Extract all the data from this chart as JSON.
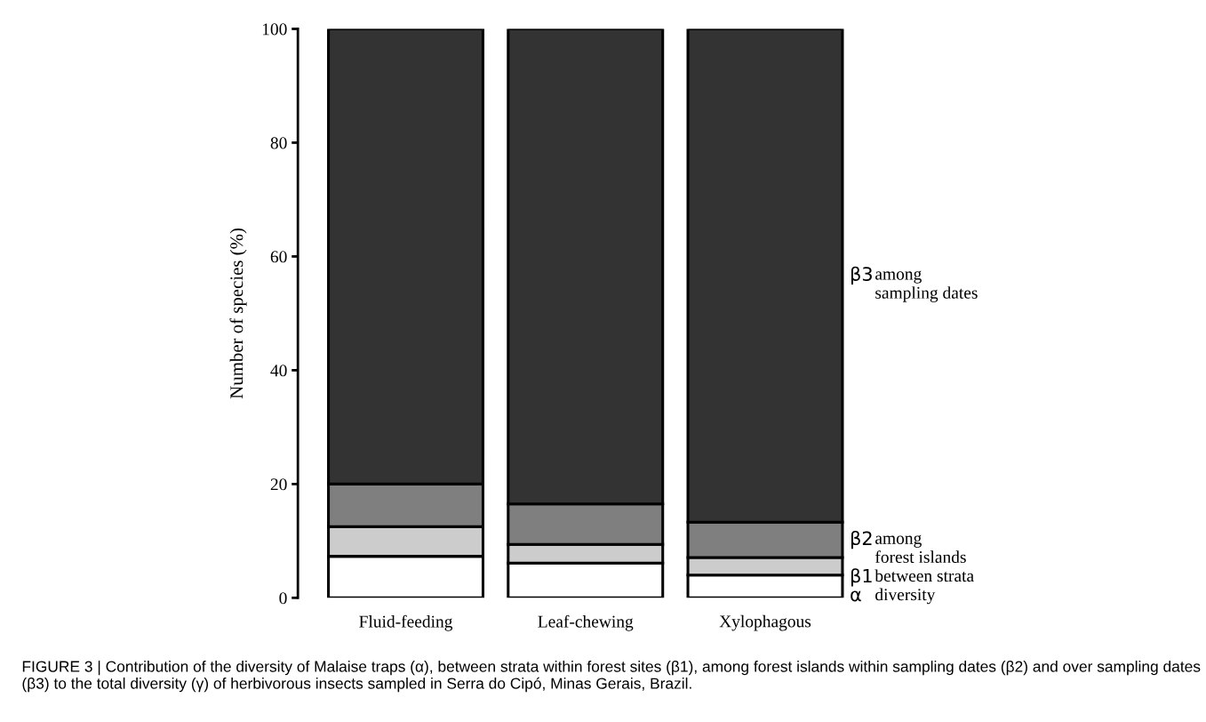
{
  "chart_data": {
    "type": "bar",
    "stacked": true,
    "ylabel": "Number of species (%)",
    "categories": [
      "Fluid-feeding",
      "Leaf-chewing",
      "Xylophagous"
    ],
    "series": [
      {
        "name": "α diversity",
        "color": "#ffffff",
        "values": [
          7.3,
          6.1,
          4.0
        ]
      },
      {
        "name": "β1 between strata",
        "color": "#cccccc",
        "values": [
          5.2,
          3.3,
          3.1
        ]
      },
      {
        "name": "β2 among forest islands",
        "color": "#7f7f7f",
        "values": [
          7.5,
          7.1,
          6.2
        ]
      },
      {
        "name": "β3 among sampling dates",
        "color": "#333333",
        "values": [
          80.0,
          83.5,
          86.7
        ]
      }
    ],
    "ylim": [
      0,
      100
    ],
    "yticks": [
      0,
      20,
      40,
      60,
      80,
      100
    ],
    "grid": false,
    "legend": false,
    "annotations": [
      "FIGURE 3 | Contribution of the diversity of Malaise traps (α), between strata within forest sites (β1), among forest islands within sampling dates (β2) and over sampling dates (β3) to the total diversity (γ) of herbivorous insects sampled in Serra do Cipó, Minas Gerais, Brazil."
    ]
  }
}
